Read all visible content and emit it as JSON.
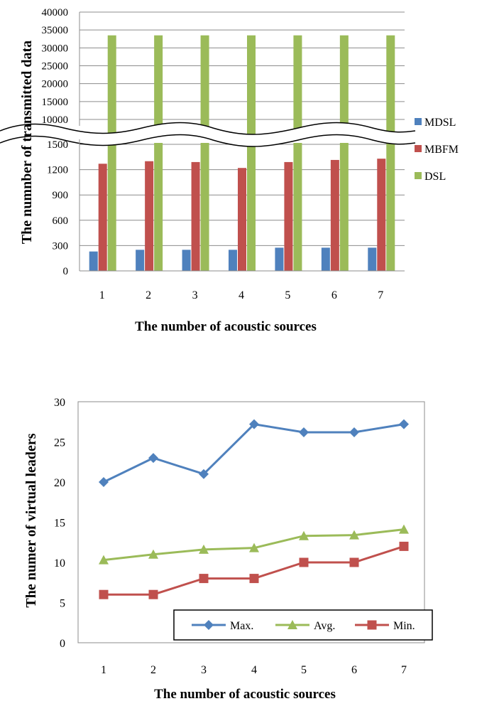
{
  "chart_data": [
    {
      "type": "bar",
      "categories": [
        "1",
        "2",
        "3",
        "4",
        "5",
        "6",
        "7"
      ],
      "series": [
        {
          "name": "MDSL",
          "color": "#4f81bd",
          "values": [
            230,
            250,
            250,
            250,
            275,
            275,
            275
          ]
        },
        {
          "name": "MBFM",
          "color": "#c0504d",
          "values": [
            1270,
            1300,
            1290,
            1220,
            1290,
            1315,
            1330
          ]
        },
        {
          "name": "DSL",
          "color": "#9bbb59",
          "values": [
            33500,
            33500,
            33500,
            33500,
            33500,
            33500,
            33500
          ]
        }
      ],
      "xlabel": "The number of acoustic sources",
      "ylabel": "The numnber of  transmitted data",
      "axis_break": [
        1500,
        10000
      ],
      "lower_ylim": [
        0,
        1500
      ],
      "upper_ylim": [
        10000,
        40000
      ],
      "lower_yticks": [
        "0",
        "300",
        "600",
        "900",
        "1200",
        "1500"
      ],
      "upper_yticks": [
        "10000",
        "15000",
        "20000",
        "25000",
        "30000",
        "35000",
        "40000"
      ],
      "legend_position": "right",
      "grid": true
    },
    {
      "type": "line",
      "categories": [
        "1",
        "2",
        "3",
        "4",
        "5",
        "6",
        "7"
      ],
      "series": [
        {
          "name": "Max.",
          "color": "#4f81bd",
          "marker": "diamond",
          "values": [
            20,
            23,
            21,
            27.2,
            26.2,
            26.2,
            27.2
          ]
        },
        {
          "name": "Avg.",
          "color": "#9bbb59",
          "marker": "triangle",
          "values": [
            10.3,
            11,
            11.6,
            11.8,
            13.3,
            13.4,
            14.1
          ]
        },
        {
          "name": "Min.",
          "color": "#c0504d",
          "marker": "square",
          "values": [
            6,
            6,
            8,
            8,
            10,
            10,
            12
          ]
        }
      ],
      "xlabel": "The number of acoustic sources",
      "ylabel": "The numer of virtual leaders",
      "ylim": [
        0,
        30
      ],
      "yticks": [
        "0",
        "5",
        "10",
        "15",
        "20",
        "25",
        "30"
      ],
      "legend_position": "bottom-right",
      "grid": false
    }
  ]
}
